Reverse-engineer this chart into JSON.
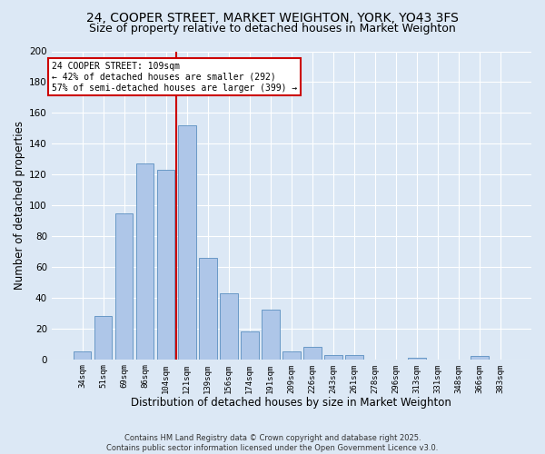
{
  "title1": "24, COOPER STREET, MARKET WEIGHTON, YORK, YO43 3FS",
  "title2": "Size of property relative to detached houses in Market Weighton",
  "xlabel": "Distribution of detached houses by size in Market Weighton",
  "ylabel": "Number of detached properties",
  "bar_labels": [
    "34sqm",
    "51sqm",
    "69sqm",
    "86sqm",
    "104sqm",
    "121sqm",
    "139sqm",
    "156sqm",
    "174sqm",
    "191sqm",
    "209sqm",
    "226sqm",
    "243sqm",
    "261sqm",
    "278sqm",
    "296sqm",
    "313sqm",
    "331sqm",
    "348sqm",
    "366sqm",
    "383sqm"
  ],
  "bar_values": [
    5,
    28,
    95,
    127,
    123,
    152,
    66,
    43,
    18,
    32,
    5,
    8,
    3,
    3,
    0,
    0,
    1,
    0,
    0,
    2,
    0
  ],
  "bar_color": "#aec6e8",
  "bar_edge_color": "#5a8fc0",
  "vline_x": 4.5,
  "vline_color": "#cc0000",
  "annotation_text": "24 COOPER STREET: 109sqm\n← 42% of detached houses are smaller (292)\n57% of semi-detached houses are larger (399) →",
  "annotation_box_color": "#ffffff",
  "annotation_box_edge": "#cc0000",
  "ylim": [
    0,
    200
  ],
  "yticks": [
    0,
    20,
    40,
    60,
    80,
    100,
    120,
    140,
    160,
    180,
    200
  ],
  "bg_color": "#dce8f5",
  "footer": "Contains HM Land Registry data © Crown copyright and database right 2025.\nContains public sector information licensed under the Open Government Licence v3.0.",
  "title1_fontsize": 10,
  "title2_fontsize": 9,
  "xlabel_fontsize": 8.5,
  "ylabel_fontsize": 8.5
}
